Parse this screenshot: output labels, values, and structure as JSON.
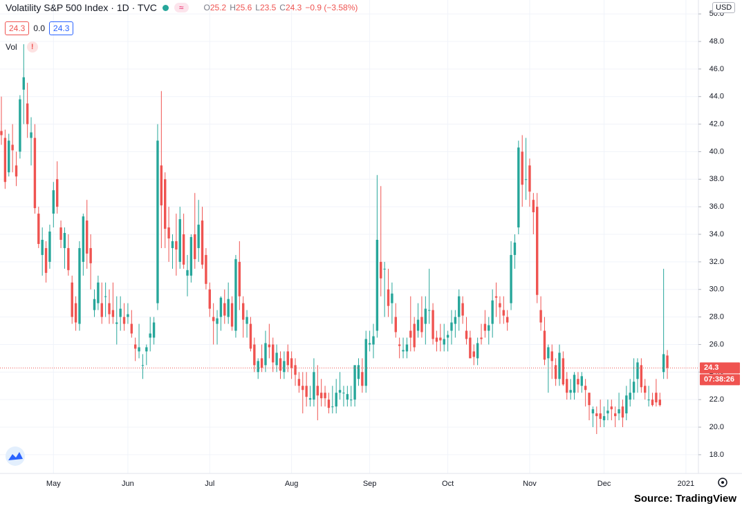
{
  "header": {
    "title": "Volatility S&P 500 Index · 1D · TVC",
    "ohlc": [
      {
        "label": "O",
        "value": "25.2"
      },
      {
        "label": "H",
        "value": "25.6"
      },
      {
        "label": "L",
        "value": "23.5"
      },
      {
        "label": "C",
        "value": "24.3"
      }
    ],
    "change": "−0.9 (−3.58%)",
    "bid": "24.3",
    "spread": "0.0",
    "ask": "24.3",
    "volume_label": "Vol",
    "warning": "!"
  },
  "source": "Source: TradingView",
  "chart_data": {
    "type": "candlestick",
    "currency": "USD",
    "countdown": "07:38:26",
    "up_color": "#26a69a",
    "down_color": "#ef5350",
    "grid": true,
    "ylim": [
      16.64,
      51.01
    ],
    "yticks": [
      {
        "value": 18,
        "label": "18.0"
      },
      {
        "value": 20,
        "label": "20.0"
      },
      {
        "value": 22,
        "label": "22.0"
      },
      {
        "value": 24,
        "label": "24.0"
      },
      {
        "value": 26,
        "label": "26.0"
      },
      {
        "value": 28,
        "label": "28.0"
      },
      {
        "value": 30,
        "label": "30.0"
      },
      {
        "value": 32,
        "label": "32.0"
      },
      {
        "value": 34,
        "label": "34.0"
      },
      {
        "value": 36,
        "label": "36.0"
      },
      {
        "value": 38,
        "label": "38.0"
      },
      {
        "value": 40,
        "label": "40.0"
      },
      {
        "value": 42,
        "label": "42.0"
      },
      {
        "value": 44,
        "label": "44.0"
      },
      {
        "value": 46,
        "label": "46.0"
      },
      {
        "value": 48,
        "label": "48.0"
      },
      {
        "value": 50,
        "label": "50.0"
      }
    ],
    "categories": [
      null,
      null,
      null,
      null,
      null,
      null,
      null,
      null,
      null,
      null,
      null,
      null,
      null,
      null,
      "May",
      null,
      null,
      null,
      null,
      null,
      null,
      null,
      null,
      null,
      null,
      null,
      null,
      null,
      null,
      null,
      null,
      null,
      null,
      null,
      "Jun",
      null,
      null,
      null,
      null,
      null,
      null,
      null,
      null,
      null,
      null,
      null,
      null,
      null,
      null,
      null,
      null,
      null,
      null,
      null,
      null,
      null,
      "Jul",
      null,
      null,
      null,
      null,
      null,
      null,
      null,
      null,
      null,
      null,
      null,
      null,
      null,
      null,
      null,
      null,
      null,
      null,
      null,
      null,
      null,
      "Aug",
      null,
      null,
      null,
      null,
      null,
      null,
      null,
      null,
      null,
      null,
      null,
      null,
      null,
      null,
      null,
      null,
      null,
      null,
      null,
      null,
      "Sep",
      null,
      null,
      null,
      null,
      null,
      null,
      null,
      null,
      null,
      null,
      null,
      null,
      null,
      null,
      null,
      null,
      null,
      null,
      null,
      null,
      "Oct",
      null,
      null,
      null,
      null,
      null,
      null,
      null,
      null,
      null,
      null,
      null,
      null,
      null,
      null,
      null,
      null,
      null,
      null,
      null,
      null,
      null,
      "Nov",
      null,
      null,
      null,
      null,
      null,
      null,
      null,
      null,
      null,
      null,
      null,
      null,
      null,
      null,
      null,
      null,
      null,
      null,
      null,
      "Dec",
      null,
      null,
      null,
      null,
      null,
      null,
      null,
      null,
      null,
      null,
      null,
      null,
      null,
      null,
      null,
      null,
      null,
      null,
      null,
      null,
      null,
      "2021"
    ],
    "series": [
      {
        "name": "Volatility S&P 500 Index",
        "open": [
          41.5,
          41.0,
          38.5,
          40.5,
          39.0,
          40.0,
          44.5,
          43.5,
          41.0,
          41.0,
          35.5,
          32.5,
          33.0,
          32.0,
          35.5,
          38.0,
          34.5,
          33.0,
          33.0,
          30.5,
          29.0,
          27.5,
          32.0,
          35.0,
          33.0,
          28.5,
          29.0,
          29.0,
          29.5,
          29.0,
          28.5,
          27.5,
          28.0,
          28.0,
          28.0,
          27.5,
          26.0,
          25.5,
          24.5,
          25.5,
          26.5,
          26.5,
          29.0,
          39.0,
          38.0,
          34.5,
          33.0,
          33.5,
          32.0,
          34.0,
          31.0,
          31.0,
          34.0,
          33.0,
          35.0,
          32.5,
          30.0,
          28.0,
          27.5,
          28.0,
          29.0,
          28.0,
          29.0,
          27.0,
          32.0,
          29.0,
          27.5,
          27.5,
          26.0,
          24.0,
          25.0,
          24.5,
          26.0,
          26.0,
          24.5,
          25.0,
          24.0,
          25.5,
          25.0,
          24.5,
          23.5,
          23.0,
          23.0,
          22.0,
          22.0,
          23.0,
          22.5,
          22.5,
          22.0,
          21.5,
          21.5,
          22.5,
          22.5,
          22.0,
          22.0,
          22.0,
          23.5,
          24.0,
          23.0,
          26.0,
          26.0,
          27.0,
          32.0,
          31.5,
          30.0,
          29.0,
          28.0,
          26.0,
          25.5,
          25.5,
          27.0,
          27.5,
          27.0,
          28.0,
          27.5,
          28.5,
          28.5,
          26.5,
          26.5,
          26.0,
          26.5,
          27.0,
          27.5,
          28.0,
          29.0,
          27.0,
          26.5,
          25.5,
          25.0,
          26.5,
          27.5,
          27.0,
          27.5,
          29.5,
          29.0,
          28.5,
          28.0,
          29.0,
          32.5,
          34.5,
          40.0,
          38.0,
          39.0,
          36.5,
          36.0,
          28.5,
          27.0,
          25.0,
          25.5,
          24.5,
          23.5,
          25.0,
          23.5,
          22.5,
          22.5,
          23.5,
          23.0,
          23.0,
          22.5,
          21.0,
          21.0,
          21.0,
          20.5,
          21.0,
          21.5,
          21.0,
          21.0,
          21.5,
          21.0,
          22.0,
          22.5,
          23.5,
          24.5,
          23.0,
          22.0,
          22.0,
          22.5,
          22.0,
          24.0,
          25.2,
          null,
          null,
          null,
          null,
          null
        ],
        "high": [
          44.0,
          41.6,
          41.3,
          42.0,
          40.0,
          44.1,
          47.8,
          45.0,
          42.5,
          42.0,
          36.0,
          34.5,
          33.5,
          34.7,
          37.8,
          39.3,
          35.0,
          34.5,
          34.0,
          31.0,
          29.5,
          33.5,
          35.5,
          36.5,
          34.0,
          30.0,
          31.0,
          30.5,
          30.5,
          30.0,
          30.5,
          29.5,
          29.5,
          29.0,
          29.0,
          28.5,
          26.5,
          27.5,
          25.3,
          26.0,
          28.0,
          28.0,
          42.0,
          44.4,
          38.5,
          36.0,
          34.0,
          35.5,
          36.0,
          35.5,
          32.5,
          34.0,
          37.0,
          36.5,
          36.0,
          33.0,
          30.5,
          29.0,
          28.5,
          29.5,
          30.0,
          30.5,
          29.5,
          32.5,
          33.5,
          29.5,
          28.5,
          28.0,
          26.5,
          25.0,
          26.0,
          27.0,
          27.5,
          26.5,
          26.0,
          25.5,
          25.5,
          26.0,
          25.5,
          25.0,
          24.0,
          24.0,
          24.0,
          23.0,
          25.0,
          24.5,
          23.5,
          23.0,
          22.5,
          23.0,
          23.5,
          24.0,
          23.0,
          23.0,
          23.0,
          24.5,
          25.0,
          25.0,
          27.0,
          27.0,
          27.5,
          38.3,
          37.5,
          32.0,
          31.5,
          30.5,
          29.0,
          26.5,
          26.5,
          26.5,
          29.5,
          28.0,
          29.0,
          29.5,
          29.5,
          31.5,
          29.0,
          27.0,
          27.5,
          27.5,
          27.0,
          28.5,
          28.5,
          30.0,
          29.5,
          28.0,
          27.0,
          26.0,
          26.5,
          27.5,
          28.5,
          28.0,
          30.0,
          30.5,
          29.5,
          29.5,
          28.5,
          33.5,
          34.0,
          40.8,
          41.2,
          41.0,
          39.5,
          37.0,
          37.0,
          29.5,
          28.0,
          26.0,
          26.0,
          25.0,
          26.0,
          25.5,
          24.0,
          23.5,
          24.0,
          24.0,
          24.0,
          23.5,
          22.5,
          21.5,
          21.5,
          22.0,
          21.5,
          22.0,
          22.0,
          21.5,
          22.5,
          22.0,
          23.0,
          23.5,
          25.0,
          25.0,
          25.0,
          23.5,
          23.0,
          22.5,
          23.5,
          22.5,
          31.5,
          25.6,
          null,
          null,
          null,
          null,
          null
        ],
        "low": [
          40.5,
          37.3,
          38.2,
          38.5,
          37.5,
          39.5,
          42.0,
          41.0,
          39.0,
          35.5,
          33.0,
          31.0,
          30.5,
          31.5,
          34.5,
          35.5,
          33.0,
          31.5,
          31.0,
          27.5,
          27.0,
          27.0,
          31.0,
          31.5,
          30.0,
          28.0,
          28.5,
          27.5,
          28.0,
          27.5,
          27.5,
          26.0,
          27.0,
          27.0,
          27.5,
          26.5,
          24.8,
          25.0,
          23.5,
          24.5,
          25.5,
          26.0,
          28.5,
          33.0,
          33.0,
          32.0,
          31.5,
          31.0,
          31.5,
          31.5,
          29.5,
          30.5,
          31.5,
          32.0,
          31.5,
          30.0,
          28.0,
          26.0,
          26.0,
          27.0,
          27.5,
          27.5,
          27.0,
          26.5,
          28.5,
          26.5,
          26.5,
          25.5,
          24.0,
          23.5,
          24.0,
          24.0,
          25.0,
          24.0,
          24.0,
          23.5,
          23.5,
          24.0,
          23.5,
          23.0,
          22.5,
          21.0,
          21.5,
          21.5,
          21.5,
          20.5,
          21.5,
          21.5,
          21.0,
          21.0,
          21.0,
          22.0,
          21.5,
          21.5,
          21.5,
          21.5,
          23.0,
          22.5,
          22.5,
          25.5,
          25.0,
          26.5,
          29.5,
          28.0,
          28.0,
          27.5,
          26.5,
          25.0,
          25.0,
          25.0,
          25.5,
          25.5,
          26.5,
          26.5,
          26.0,
          27.5,
          26.0,
          25.5,
          25.5,
          25.5,
          25.5,
          26.0,
          26.5,
          27.0,
          27.5,
          26.0,
          25.0,
          24.5,
          24.5,
          26.0,
          26.5,
          26.0,
          26.5,
          28.0,
          27.5,
          27.5,
          27.0,
          28.5,
          31.5,
          34.0,
          36.0,
          36.5,
          36.0,
          34.0,
          29.0,
          27.0,
          24.5,
          22.5,
          23.5,
          23.0,
          23.0,
          23.0,
          22.0,
          22.0,
          22.0,
          22.5,
          22.5,
          21.5,
          20.5,
          20.0,
          19.5,
          20.0,
          20.0,
          20.5,
          20.5,
          20.0,
          20.5,
          20.0,
          20.5,
          21.5,
          22.0,
          22.5,
          22.5,
          22.0,
          21.5,
          21.5,
          21.5,
          21.5,
          23.5,
          23.5,
          null,
          null,
          null,
          null,
          null
        ],
        "close": [
          41.2,
          37.8,
          40.8,
          40.1,
          38.2,
          43.8,
          45.4,
          42.0,
          41.4,
          35.9,
          33.3,
          33.6,
          31.2,
          34.2,
          37.2,
          36.0,
          33.6,
          34.1,
          31.4,
          28.0,
          27.6,
          33.0,
          35.3,
          32.6,
          31.9,
          29.3,
          30.5,
          28.0,
          29.5,
          28.2,
          28.0,
          27.6,
          28.6,
          27.5,
          28.2,
          26.8,
          25.7,
          25.8,
          24.5,
          25.8,
          26.8,
          27.6,
          40.8,
          36.1,
          34.4,
          33.7,
          33.5,
          32.9,
          35.1,
          31.8,
          31.4,
          33.8,
          32.2,
          34.7,
          31.8,
          30.4,
          28.6,
          27.7,
          27.9,
          29.4,
          28.1,
          29.3,
          27.3,
          32.2,
          29.5,
          27.8,
          28.0,
          25.7,
          24.5,
          24.8,
          24.3,
          26.1,
          25.8,
          24.7,
          25.4,
          24.1,
          24.8,
          24.5,
          24.3,
          23.8,
          23.0,
          22.7,
          22.2,
          22.1,
          24.0,
          22.3,
          22.1,
          22.1,
          21.4,
          21.5,
          22.5,
          22.7,
          22.5,
          22.4,
          22.0,
          24.5,
          24.5,
          23.0,
          26.4,
          26.1,
          26.6,
          33.6,
          30.8,
          31.5,
          28.8,
          29.7,
          26.9,
          25.9,
          25.6,
          26.0,
          26.5,
          25.8,
          27.8,
          26.9,
          28.6,
          28.5,
          26.4,
          26.2,
          26.3,
          26.4,
          26.7,
          27.6,
          28.0,
          29.5,
          28.1,
          26.4,
          25.0,
          25.1,
          26.1,
          26.4,
          27.0,
          27.4,
          29.2,
          29.4,
          28.7,
          28.1,
          27.6,
          32.5,
          33.4,
          40.3,
          37.6,
          38.0,
          37.1,
          35.6,
          29.6,
          27.6,
          24.9,
          25.8,
          24.8,
          23.5,
          25.4,
          23.1,
          22.5,
          22.7,
          23.8,
          23.1,
          23.7,
          22.7,
          21.6,
          21.3,
          20.8,
          20.6,
          20.8,
          21.2,
          21.3,
          20.8,
          21.3,
          20.7,
          22.3,
          22.5,
          23.3,
          24.7,
          22.9,
          22.5,
          22.0,
          21.6,
          21.8,
          21.6,
          25.3,
          24.3,
          null,
          null,
          null,
          null,
          null
        ]
      }
    ]
  }
}
